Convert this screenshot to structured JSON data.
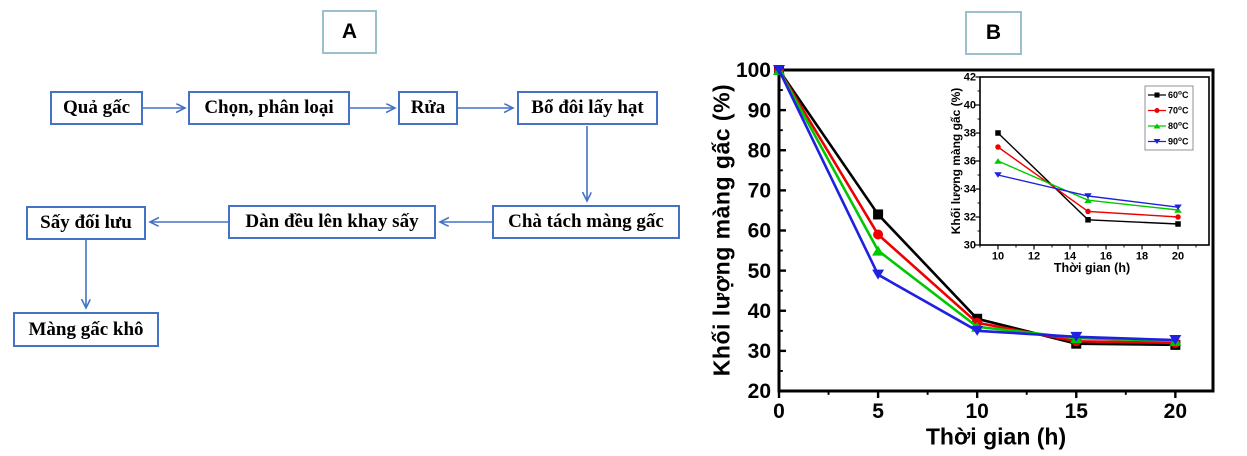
{
  "panel_labels": {
    "a": "A",
    "b": "B"
  },
  "flowchart": {
    "arrow_color": "#4472C4",
    "nodes": [
      {
        "id": "qua-gac",
        "label": "Quả gấc"
      },
      {
        "id": "chon-phan-loai",
        "label": "Chọn, phân loại"
      },
      {
        "id": "rua",
        "label": "Rửa"
      },
      {
        "id": "bo-doi-lay-hat",
        "label": "Bổ đôi lấy hạt"
      },
      {
        "id": "cha-tach-mang-gac",
        "label": "Chà tách màng gấc"
      },
      {
        "id": "dan-deu-len-khay-say",
        "label": "Dàn đều lên khay sấy"
      },
      {
        "id": "say-doi-luu",
        "label": "Sấy đối lưu"
      },
      {
        "id": "mang-gac-kho",
        "label": "Màng gấc khô"
      }
    ],
    "edges": [
      [
        "qua-gac",
        "chon-phan-loai"
      ],
      [
        "chon-phan-loai",
        "rua"
      ],
      [
        "rua",
        "bo-doi-lay-hat"
      ],
      [
        "bo-doi-lay-hat",
        "cha-tach-mang-gac"
      ],
      [
        "cha-tach-mang-gac",
        "dan-deu-len-khay-say"
      ],
      [
        "dan-deu-len-khay-say",
        "say-doi-luu"
      ],
      [
        "say-doi-luu",
        "mang-gac-kho"
      ]
    ]
  },
  "chart_data": [
    {
      "id": "main",
      "type": "line",
      "title": "",
      "xlabel": "Thời gian (h)",
      "ylabel": "Khối lượng màng gấc (%)",
      "xlim": [
        0,
        21.9
      ],
      "ylim": [
        20,
        100
      ],
      "xticks": [
        0,
        5,
        10,
        15,
        20
      ],
      "yticks": [
        20,
        30,
        40,
        50,
        60,
        70,
        80,
        90,
        100
      ],
      "x_minor_step": 2.5,
      "y_minor_step": 5,
      "grid": false,
      "legend": false,
      "x": [
        0,
        5,
        10,
        15,
        20
      ],
      "series": [
        {
          "name": "60°C",
          "color": "#000000",
          "marker": "square",
          "values": [
            100,
            64,
            38,
            31.8,
            31.5
          ]
        },
        {
          "name": "70°C",
          "color": "#EE0000",
          "marker": "circle",
          "values": [
            100,
            59,
            37,
            32.4,
            32.0
          ]
        },
        {
          "name": "80°C",
          "color": "#00C800",
          "marker": "triangle-up",
          "values": [
            100,
            55,
            36,
            33.2,
            32.5
          ]
        },
        {
          "name": "90°C",
          "color": "#2020E0",
          "marker": "triangle-down",
          "values": [
            100,
            49,
            35,
            33.5,
            32.7
          ]
        }
      ]
    },
    {
      "id": "inset",
      "type": "line",
      "title": "",
      "xlabel": "Thời gian (h)",
      "ylabel": "Khối lượng màng gấc (%)",
      "xlim": [
        9.0,
        21.72
      ],
      "ylim": [
        30,
        42
      ],
      "xticks": [
        10,
        12,
        14,
        16,
        18,
        20
      ],
      "yticks": [
        30,
        32,
        34,
        36,
        38,
        40,
        42
      ],
      "x_minor_step": 1,
      "y_minor_step": 1,
      "grid": false,
      "legend": true,
      "legend_position": "top-right",
      "x": [
        10,
        15,
        20
      ],
      "series": [
        {
          "name": "60°C",
          "color": "#000000",
          "marker": "square",
          "values": [
            38,
            31.8,
            31.5
          ]
        },
        {
          "name": "70°C",
          "color": "#EE0000",
          "marker": "circle",
          "values": [
            37,
            32.4,
            32.0
          ]
        },
        {
          "name": "80°C",
          "color": "#00C800",
          "marker": "triangle-up",
          "values": [
            36,
            33.2,
            32.5
          ]
        },
        {
          "name": "90°C",
          "color": "#2020E0",
          "marker": "triangle-down",
          "values": [
            35,
            33.5,
            32.7
          ]
        }
      ]
    }
  ]
}
